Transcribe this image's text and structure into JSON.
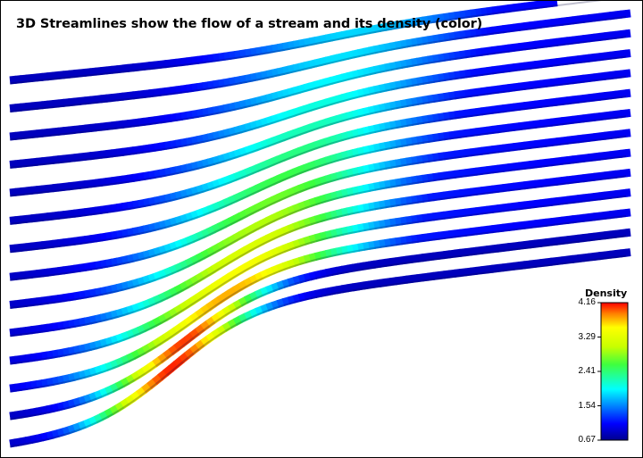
{
  "title": "3D Streamlines show the flow of a stream and its density (color)",
  "chart_data": {
    "type": "streamlines",
    "title": "3D Streamlines show the flow of a stream and its density (color)",
    "colorbar": {
      "title": "Density",
      "min": 0.67,
      "max": 4.16,
      "ticks": [
        "4.16",
        "3.29",
        "2.41",
        "1.54",
        "0.67"
      ],
      "colorscale": "jet"
    },
    "grid": false,
    "legend_position": "bottom-right",
    "streamline_count": 14
  }
}
